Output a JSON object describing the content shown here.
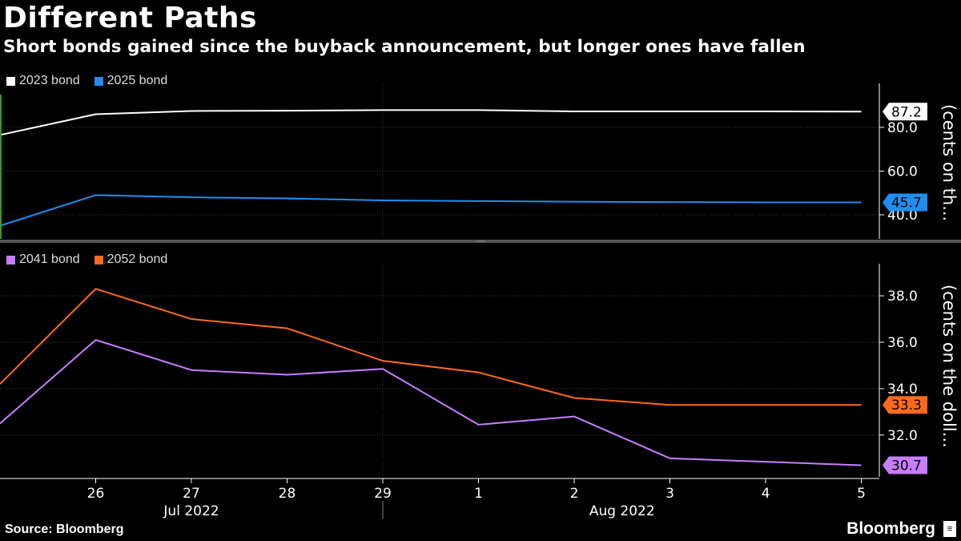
{
  "title": "Different Paths",
  "subtitle": "Short bonds gained since the buyback announcement, but longer ones have fallen",
  "source": "Source: Bloomberg",
  "brand": "Bloomberg",
  "chart_data": [
    {
      "type": "line",
      "x": [
        "25",
        "26",
        "27",
        "28",
        "29",
        "1",
        "2",
        "3",
        "4",
        "5"
      ],
      "x_tick_labels": [
        "26",
        "27",
        "28",
        "29",
        "1",
        "2",
        "3",
        "4",
        "5"
      ],
      "x_group_labels": [
        "Jul 2022",
        "Aug 2022"
      ],
      "ylabel": "(cents on th...",
      "y_ticks": [
        40.0,
        60.0,
        80.0
      ],
      "ylim": [
        29,
        95
      ],
      "grid": true,
      "legend_position": "top-left",
      "series": [
        {
          "name": "2023 bond",
          "color": "#ffffff",
          "values": [
            76.5,
            86.0,
            87.5,
            87.6,
            87.9,
            87.9,
            87.3,
            87.3,
            87.3,
            87.2
          ],
          "last_label": "87.2"
        },
        {
          "name": "2025 bond",
          "color": "#1f8ef1",
          "values": [
            35.0,
            49.0,
            48.0,
            47.5,
            46.6,
            46.3,
            46.0,
            45.8,
            45.7,
            45.7
          ],
          "last_label": "45.7"
        }
      ]
    },
    {
      "type": "line",
      "x": [
        "25",
        "26",
        "27",
        "28",
        "29",
        "1",
        "2",
        "3",
        "4",
        "5"
      ],
      "x_tick_labels": [
        "26",
        "27",
        "28",
        "29",
        "1",
        "2",
        "3",
        "4",
        "5"
      ],
      "x_group_labels": [
        "Jul 2022",
        "Aug 2022"
      ],
      "ylabel": "(cents on the doll...",
      "y_ticks": [
        32.0,
        34.0,
        36.0,
        38.0
      ],
      "ylim": [
        30.2,
        38.9
      ],
      "grid": true,
      "legend_position": "top-left",
      "series": [
        {
          "name": "2041 bond",
          "color": "#c77dff",
          "values": [
            32.5,
            36.1,
            34.8,
            34.6,
            34.85,
            32.45,
            32.8,
            31.0,
            30.85,
            30.7
          ],
          "last_label": "30.7"
        },
        {
          "name": "2052 bond",
          "color": "#ff6a1a",
          "values": [
            34.2,
            38.3,
            37.0,
            36.6,
            35.2,
            34.7,
            33.6,
            33.3,
            33.3,
            33.3
          ],
          "last_label": "33.3"
        }
      ]
    }
  ]
}
